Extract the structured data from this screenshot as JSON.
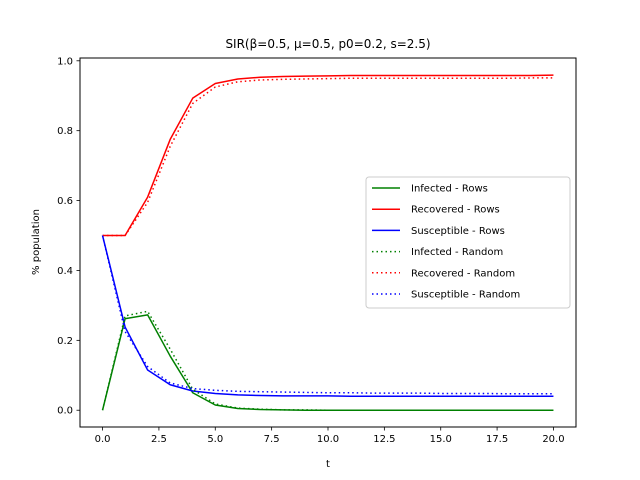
{
  "chart_data": {
    "type": "line",
    "title": "SIR(β=0.5, μ=0.5, p0=0.2, s=2.5)",
    "xlabel": "t",
    "ylabel": "% population",
    "xlim": [
      -1,
      21
    ],
    "ylim": [
      -0.048,
      1.008
    ],
    "xticks": [
      0.0,
      2.5,
      5.0,
      7.5,
      10.0,
      12.5,
      15.0,
      17.5,
      20.0
    ],
    "xtick_labels": [
      "0.0",
      "2.5",
      "5.0",
      "7.5",
      "10.0",
      "12.5",
      "15.0",
      "17.5",
      "20.0"
    ],
    "yticks": [
      0.0,
      0.2,
      0.4,
      0.6,
      0.8,
      1.0
    ],
    "ytick_labels": [
      "0.0",
      "0.2",
      "0.4",
      "0.6",
      "0.8",
      "1.0"
    ],
    "grid": false,
    "legend_position": "center-right",
    "x": [
      0,
      1,
      2,
      3,
      4,
      5,
      6,
      7,
      8,
      9,
      10,
      11,
      12,
      13,
      14,
      15,
      16,
      17,
      18,
      19,
      20
    ],
    "series": [
      {
        "name": "Infected - Rows",
        "color": "#008000",
        "style": "solid",
        "values": [
          0.0,
          0.262,
          0.273,
          0.155,
          0.05,
          0.015,
          0.005,
          0.002,
          0.001,
          0.0,
          0.0,
          0.0,
          0.0,
          0.0,
          0.0,
          0.0,
          0.0,
          0.0,
          0.0,
          0.0,
          0.0
        ]
      },
      {
        "name": "Recovered - Rows",
        "color": "#ff0000",
        "style": "solid",
        "values": [
          0.5,
          0.5,
          0.61,
          0.775,
          0.893,
          0.935,
          0.948,
          0.953,
          0.955,
          0.956,
          0.957,
          0.958,
          0.958,
          0.958,
          0.958,
          0.958,
          0.958,
          0.958,
          0.958,
          0.958,
          0.959
        ]
      },
      {
        "name": "Susceptible - Rows",
        "color": "#0000ff",
        "style": "solid",
        "values": [
          0.5,
          0.238,
          0.115,
          0.073,
          0.055,
          0.048,
          0.044,
          0.042,
          0.041,
          0.041,
          0.041,
          0.04,
          0.04,
          0.04,
          0.04,
          0.04,
          0.04,
          0.04,
          0.04,
          0.04,
          0.04
        ]
      },
      {
        "name": "Infected - Random",
        "color": "#008000",
        "style": "dotted",
        "values": [
          0.0,
          0.27,
          0.283,
          0.175,
          0.06,
          0.018,
          0.006,
          0.003,
          0.001,
          0.001,
          0.0,
          0.0,
          0.0,
          0.0,
          0.0,
          0.0,
          0.0,
          0.0,
          0.0,
          0.0,
          0.0
        ]
      },
      {
        "name": "Recovered - Random",
        "color": "#ff0000",
        "style": "dotted",
        "values": [
          0.5,
          0.5,
          0.595,
          0.755,
          0.878,
          0.925,
          0.94,
          0.945,
          0.947,
          0.948,
          0.949,
          0.95,
          0.95,
          0.95,
          0.95,
          0.95,
          0.95,
          0.95,
          0.95,
          0.951,
          0.951
        ]
      },
      {
        "name": "Susceptible - Random",
        "color": "#0000ff",
        "style": "dotted",
        "values": [
          0.5,
          0.225,
          0.125,
          0.078,
          0.062,
          0.057,
          0.054,
          0.053,
          0.052,
          0.051,
          0.05,
          0.05,
          0.049,
          0.049,
          0.049,
          0.048,
          0.048,
          0.048,
          0.047,
          0.047,
          0.047
        ]
      }
    ]
  }
}
